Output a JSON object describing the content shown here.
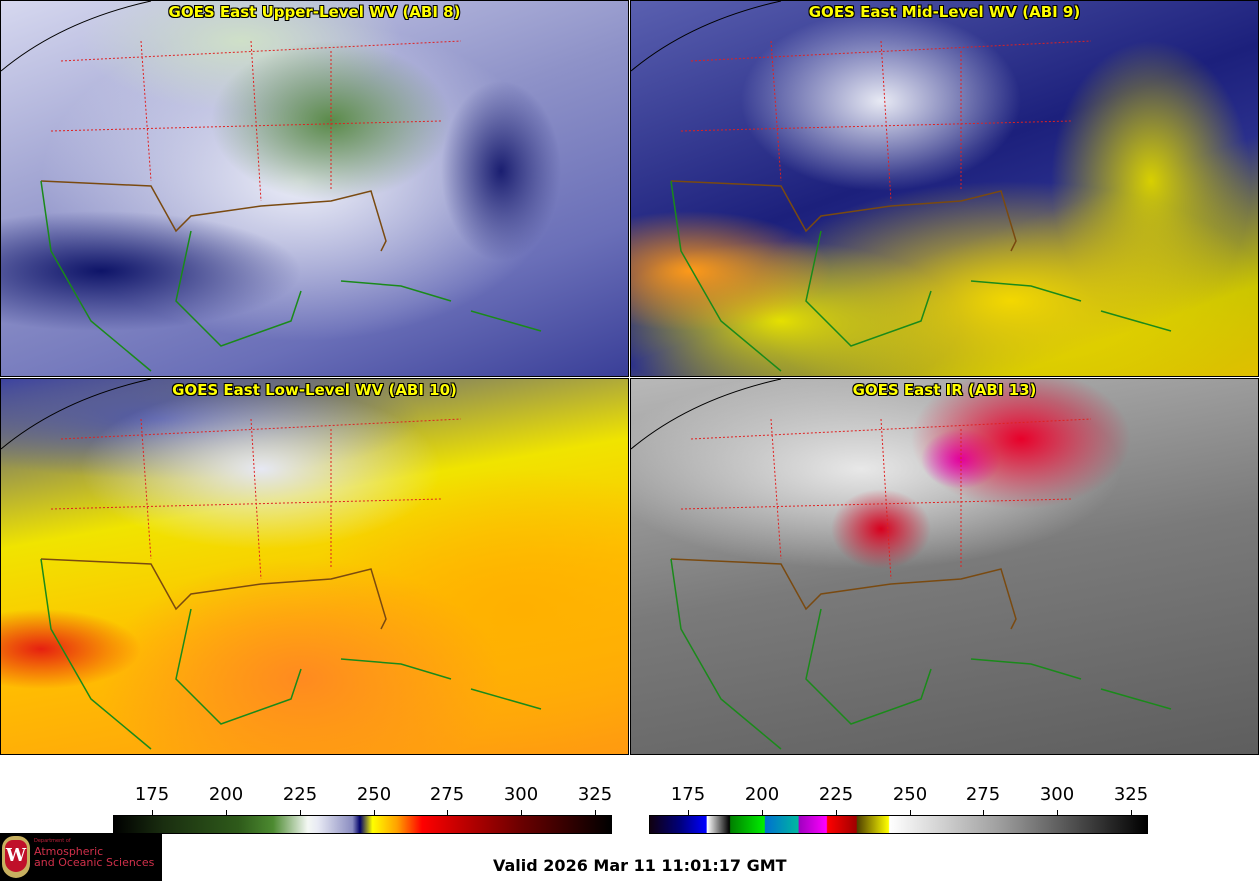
{
  "panels": [
    {
      "title": "GOES East Upper-Level WV (ABI 8)"
    },
    {
      "title": "GOES East Mid-Level WV (ABI 9)"
    },
    {
      "title": "GOES East Low-Level WV (ABI 10)"
    },
    {
      "title": "GOES East IR (ABI 13)"
    }
  ],
  "colorbars": [
    {
      "name": "water-vapor",
      "range": [
        162,
        330
      ],
      "ticks": [
        "175",
        "200",
        "225",
        "250",
        "275",
        "300",
        "325"
      ]
    },
    {
      "name": "infrared",
      "range": [
        162,
        330
      ],
      "ticks": [
        "175",
        "200",
        "225",
        "250",
        "275",
        "300",
        "325"
      ]
    }
  ],
  "logo": {
    "dept": "Department of",
    "line1": "Atmospheric",
    "line2": "and Oceanic Sciences",
    "letter": "W"
  },
  "valid_time": "Valid 2026 Mar 11 11:01:17 GMT",
  "colors": {
    "title": "#ffff00",
    "coastline": "#1a8a1a",
    "borders": "#7a4a10",
    "states": "#e02020"
  }
}
